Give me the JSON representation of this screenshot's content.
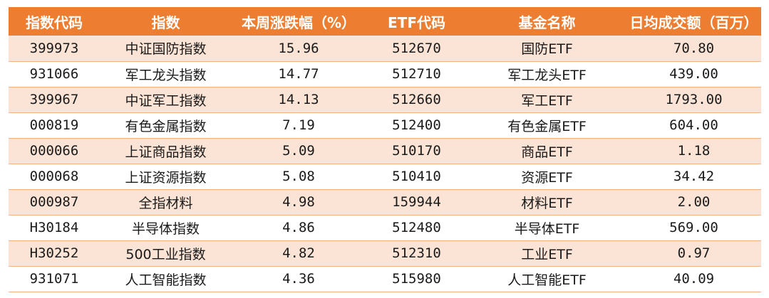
{
  "table": {
    "headers": [
      "指数代码",
      "指数",
      "本周涨跌幅（%）",
      "ETF代码",
      "基金名称",
      "日均成交额（百万）"
    ],
    "rows": [
      [
        "399973",
        "中证国防指数",
        "15.96",
        "512670",
        "国防ETF",
        "70.80"
      ],
      [
        "931066",
        "军工龙头指数",
        "14.77",
        "512710",
        "军工龙头ETF",
        "439.00"
      ],
      [
        "399967",
        "中证军工指数",
        "14.13",
        "512660",
        "军工ETF",
        "1793.00"
      ],
      [
        "000819",
        "有色金属指数",
        "7.19",
        "512400",
        "有色金属ETF",
        "604.00"
      ],
      [
        "000066",
        "上证商品指数",
        "5.09",
        "510170",
        "商品ETF",
        "1.18"
      ],
      [
        "000068",
        "上证资源指数",
        "5.08",
        "510410",
        "资源ETF",
        "34.42"
      ],
      [
        "000987",
        "全指材料",
        "4.98",
        "159944",
        "材料ETF",
        "2.00"
      ],
      [
        "H30184",
        "半导体指数",
        "4.86",
        "512480",
        "半导体ETF",
        "569.00"
      ],
      [
        "H30252",
        "500工业指数",
        "4.82",
        "512310",
        "工业ETF",
        "0.97"
      ],
      [
        "931071",
        "人工智能指数",
        "4.36",
        "515980",
        "人工智能ETF",
        "40.09"
      ]
    ]
  },
  "colors": {
    "header_bg": "#ed7d31",
    "header_text": "#ffffff",
    "stripe_bg": "#fbe4d5",
    "row_bg": "#ffffff"
  }
}
